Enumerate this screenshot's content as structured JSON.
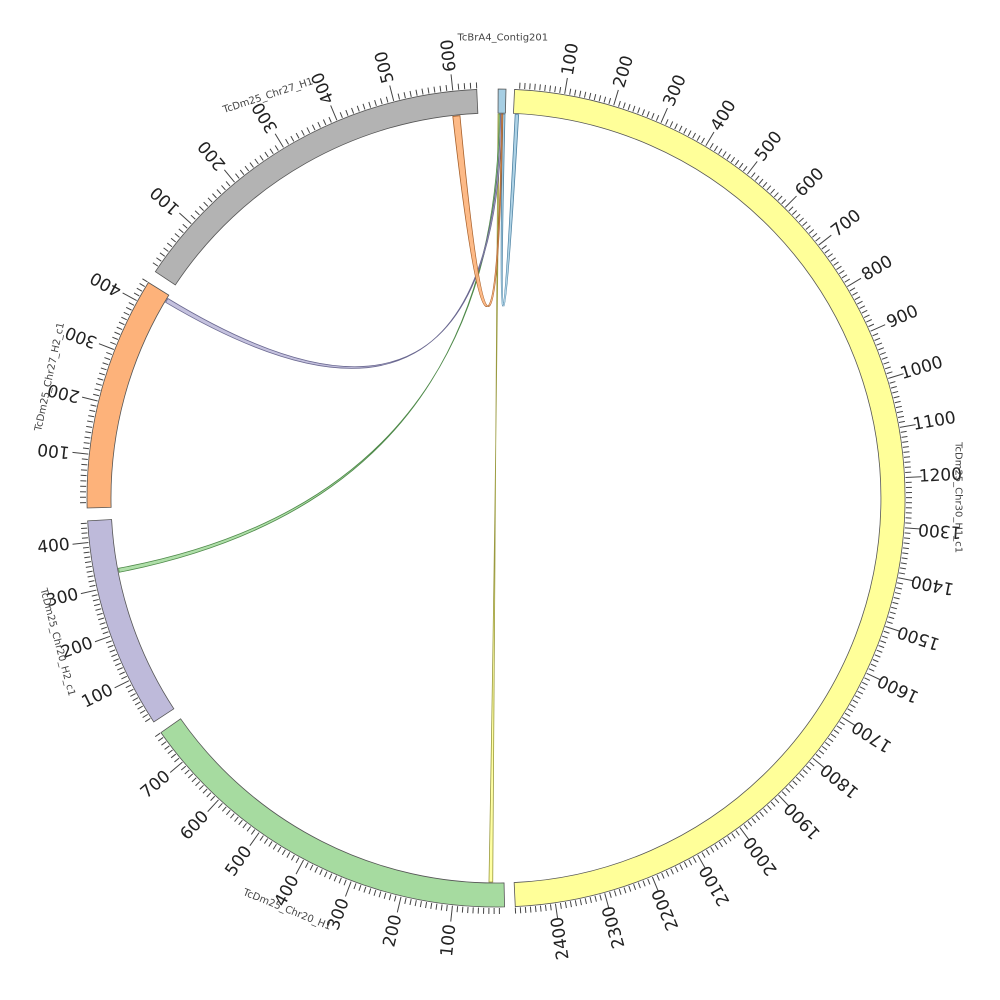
{
  "diagram": {
    "type": "circos",
    "segments": [
      {
        "id": "contig201",
        "name": "TcBrA4_Contig201",
        "length": 12,
        "fill": "#a6cee3",
        "tick_labels": []
      },
      {
        "id": "chr30_h1",
        "name": "TcDm25_Chr30_H1_c1",
        "length": 2480,
        "fill": "#ffff99",
        "tick_labels": [
          "100",
          "200",
          "300",
          "400",
          "500",
          "600",
          "700",
          "800",
          "900",
          "1000",
          "1100",
          "1200",
          "1300",
          "1400",
          "1500",
          "1600",
          "1700",
          "1800",
          "1900",
          "2000",
          "2100",
          "2200",
          "2300",
          "2400"
        ]
      },
      {
        "id": "chr20_h1",
        "name": "TcDm25_Chr20_H1",
        "length": 770,
        "fill": "#a6dba0",
        "tick_labels": [
          "100",
          "200",
          "300",
          "400",
          "500",
          "600",
          "700"
        ]
      },
      {
        "id": "chr20_h2",
        "name": "TcDm25_Chr20_H2_c1",
        "length": 445,
        "fill": "#bebada",
        "tick_labels": [
          "100",
          "200",
          "300",
          "400"
        ]
      },
      {
        "id": "chr27_h2",
        "name": "TcDm25_Chr27_H2_c1",
        "length": 440,
        "fill": "#fdb27a",
        "tick_labels": [
          "100",
          "200",
          "300",
          "400"
        ]
      },
      {
        "id": "chr27_h1",
        "name": "TcDm25_Chr27_H1",
        "length": 640,
        "fill": "#b3b3b3",
        "tick_labels": [
          "100",
          "200",
          "300",
          "400",
          "500",
          "600"
        ]
      }
    ],
    "links": [
      {
        "from": "contig201",
        "to": "chr30_h1",
        "color": "#a6cee3",
        "stroke": "#4a7fa0"
      },
      {
        "from": "contig201",
        "to": "chr20_h1",
        "color": "#ffff99",
        "stroke": "#9a9a40"
      },
      {
        "from": "contig201",
        "to": "chr20_h2",
        "color": "#a6dba0",
        "stroke": "#4f8a4a"
      },
      {
        "from": "contig201",
        "to": "chr27_h2",
        "color": "#bebada",
        "stroke": "#6a6890"
      },
      {
        "from": "contig201",
        "to": "chr27_h1",
        "color": "#fdb27a",
        "stroke": "#a8602a"
      }
    ]
  }
}
